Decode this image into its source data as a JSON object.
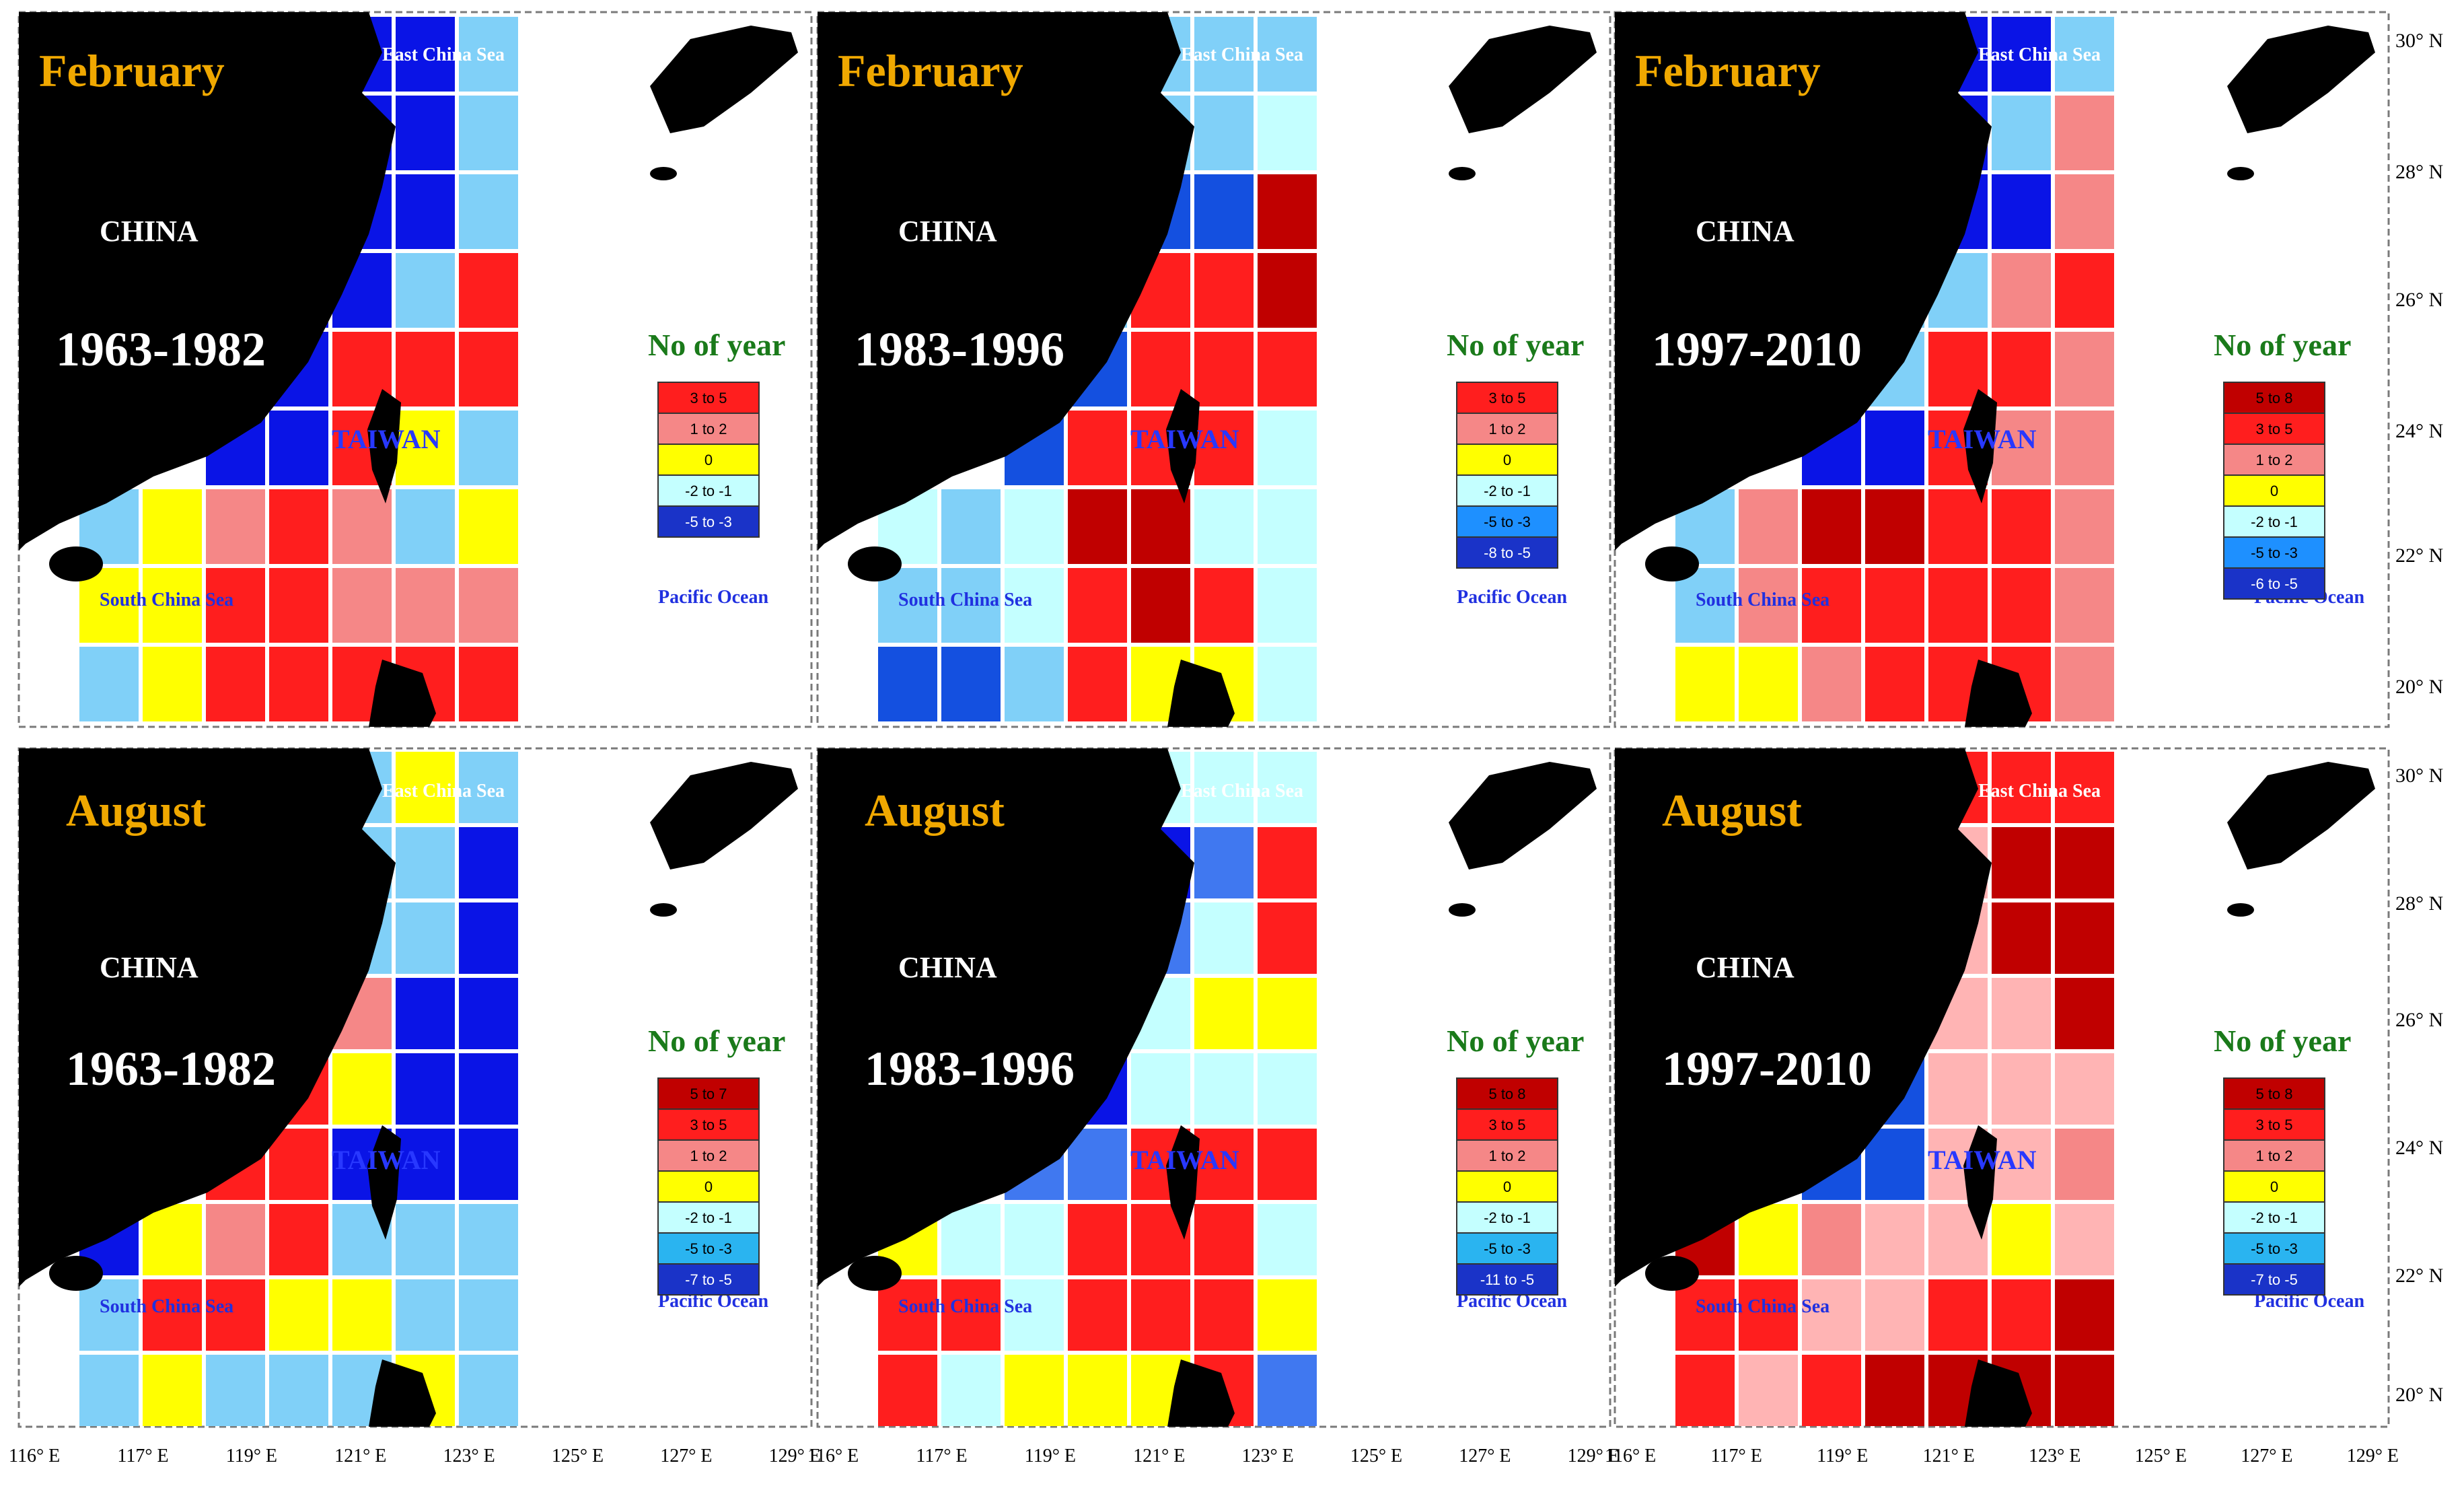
{
  "panels": [
    {
      "id": "feb-1963-1982",
      "month": "February",
      "period": "1963-1982",
      "country_label": "CHINA",
      "island_label": "TAIWAN",
      "seas": {
        "ecs": "East China Sea",
        "scs": "South China Sea",
        "po": "Pacific Ocean"
      },
      "legend_title": "No of year",
      "legend": [
        {
          "label": "3 to 5",
          "color": "#ff1e1e"
        },
        {
          "label": "1 to 2",
          "color": "#f58787"
        },
        {
          "label": "0",
          "color": "#ffff00"
        },
        {
          "label": "-2 to -1",
          "color": "#c4ffff"
        },
        {
          "label": "-5 to -3",
          "color": "#1a33c8"
        }
      ],
      "grid": [
        [
          "B1",
          "B1",
          "B1",
          "B1",
          "L"
        ],
        [
          "B1",
          "B1",
          "B1",
          "B1",
          "L"
        ],
        [
          "B1",
          "B1",
          "B1",
          "B1",
          "L"
        ],
        [
          "B1",
          "B1",
          "B1",
          "L",
          "R1"
        ],
        [
          "R1",
          "B1",
          "R1",
          "R1",
          "R1"
        ],
        [
          "B1",
          "B1",
          "R1",
          "Y",
          "L"
        ],
        [
          "L",
          "Y",
          "P",
          "R1",
          "P",
          "L",
          "Y"
        ],
        [
          "Y",
          "Y",
          "R1",
          "R1",
          "P",
          "P",
          "P"
        ],
        [
          "L",
          "Y",
          "R1",
          "R1",
          "R1",
          "R1",
          "R1"
        ]
      ]
    },
    {
      "id": "feb-1983-1996",
      "month": "February",
      "period": "1983-1996",
      "country_label": "CHINA",
      "island_label": "TAIWAN",
      "seas": {
        "ecs": "East China Sea",
        "scs": "South China Sea",
        "po": "Pacific Ocean"
      },
      "legend_title": "No of year",
      "legend": [
        {
          "label": "3 to 5",
          "color": "#ff1e1e"
        },
        {
          "label": "1 to 2",
          "color": "#f58787"
        },
        {
          "label": "0",
          "color": "#ffff00"
        },
        {
          "label": "-2 to -1",
          "color": "#c4ffff"
        },
        {
          "label": "-5 to -3",
          "color": "#1e90ff"
        },
        {
          "label": "-8 to -5",
          "color": "#1a33c8"
        }
      ],
      "grid": [
        [
          "L",
          "L",
          "L",
          "L",
          "L"
        ],
        [
          "L",
          "B2",
          "L",
          "L",
          "C"
        ],
        [
          "B2",
          "B2",
          "B2",
          "B2",
          "D"
        ],
        [
          "B2",
          "L",
          "R1",
          "R1",
          "D"
        ],
        [
          "B2",
          "B2",
          "R1",
          "R1",
          "R1"
        ],
        [
          "B2",
          "R1",
          "R1",
          "R1",
          "C"
        ],
        [
          "C",
          "L",
          "C",
          "D",
          "D",
          "C",
          "C"
        ],
        [
          "L",
          "L",
          "C",
          "R1",
          "D",
          "R1",
          "C"
        ],
        [
          "B2",
          "B2",
          "L",
          "R1",
          "Y",
          "Y",
          "C"
        ]
      ]
    },
    {
      "id": "feb-1997-2010",
      "month": "February",
      "period": "1997-2010",
      "country_label": "CHINA",
      "island_label": "TAIWAN",
      "seas": {
        "ecs": "East China Sea",
        "scs": "South China Sea",
        "po": "Pacific Ocean"
      },
      "legend_title": "No of year",
      "legend": [
        {
          "label": "5 to 8",
          "color": "#c00000"
        },
        {
          "label": "3 to 5",
          "color": "#ff1e1e"
        },
        {
          "label": "1 to 2",
          "color": "#f58787"
        },
        {
          "label": "0",
          "color": "#ffff00"
        },
        {
          "label": "-2 to -1",
          "color": "#c4ffff"
        },
        {
          "label": "-5 to -3",
          "color": "#1e90ff"
        },
        {
          "label": "-6 to -5",
          "color": "#1a33c8"
        }
      ],
      "grid": [
        [
          "B1",
          "B1",
          "B1",
          "B1",
          "L"
        ],
        [
          "B1",
          "B1",
          "B1",
          "L",
          "P"
        ],
        [
          "B1",
          "B1",
          "B1",
          "B1",
          "P"
        ],
        [
          "L",
          "L",
          "L",
          "P",
          "R1"
        ],
        [
          "B1",
          "L",
          "R1",
          "R1",
          "P"
        ],
        [
          "B1",
          "B1",
          "R1",
          "P",
          "P"
        ],
        [
          "L",
          "P",
          "D",
          "D",
          "R1",
          "R1",
          "P"
        ],
        [
          "L",
          "P",
          "R1",
          "R1",
          "R1",
          "R1",
          "P"
        ],
        [
          "Y",
          "Y",
          "P",
          "R1",
          "R1",
          "R1",
          "P"
        ]
      ]
    },
    {
      "id": "aug-1963-1982",
      "month": "August",
      "period": "1963-1982",
      "country_label": "CHINA",
      "island_label": "TAIWAN",
      "seas": {
        "ecs": "East China Sea",
        "scs": "South China Sea",
        "po": "Pacific Ocean"
      },
      "legend_title": "No of year",
      "legend": [
        {
          "label": "5 to 7",
          "color": "#c00000"
        },
        {
          "label": "3 to 5",
          "color": "#ff1e1e"
        },
        {
          "label": "1 to 2",
          "color": "#f58787"
        },
        {
          "label": "0",
          "color": "#ffff00"
        },
        {
          "label": "-2 to -1",
          "color": "#c4ffff"
        },
        {
          "label": "-5 to -3",
          "color": "#2ab4f0"
        },
        {
          "label": "-7 to -5",
          "color": "#1a33c8"
        }
      ],
      "grid": [
        [
          "B1",
          "B1",
          "L",
          "Y",
          "L"
        ],
        [
          "L",
          "L",
          "L",
          "L",
          "B1"
        ],
        [
          "Y",
          "Y",
          "L",
          "L",
          "B1"
        ],
        [
          "R1",
          "R1",
          "P",
          "B1",
          "B1"
        ],
        [
          "R1",
          "R1",
          "Y",
          "B1",
          "B1"
        ],
        [
          "R1",
          "R1",
          "B1",
          "B1",
          "B1"
        ],
        [
          "B1",
          "Y",
          "P",
          "R1",
          "L",
          "L",
          "L"
        ],
        [
          "L",
          "R1",
          "R1",
          "Y",
          "Y",
          "L",
          "L"
        ],
        [
          "L",
          "Y",
          "L",
          "L",
          "L",
          "Y",
          "L"
        ]
      ]
    },
    {
      "id": "aug-1983-1996",
      "month": "August",
      "period": "1983-1996",
      "country_label": "CHINA",
      "island_label": "TAIWAN",
      "seas": {
        "ecs": "East China Sea",
        "scs": "South China Sea",
        "po": "Pacific Ocean"
      },
      "legend_title": "No of year",
      "legend": [
        {
          "label": "5 to 8",
          "color": "#c00000"
        },
        {
          "label": "3 to 5",
          "color": "#ff1e1e"
        },
        {
          "label": "1 to 2",
          "color": "#f58787"
        },
        {
          "label": "0",
          "color": "#ffff00"
        },
        {
          "label": "-2 to -1",
          "color": "#c4ffff"
        },
        {
          "label": "-5 to -3",
          "color": "#2ab4f0"
        },
        {
          "label": "-11 to -5",
          "color": "#1a33c8"
        }
      ],
      "grid": [
        [
          "R1",
          "L",
          "C",
          "C",
          "C"
        ],
        [
          "B1",
          "B1",
          "B1",
          "B3",
          "R1"
        ],
        [
          "B1",
          "B1",
          "B3",
          "C",
          "R1"
        ],
        [
          "B1",
          "B1",
          "C",
          "Y",
          "Y"
        ],
        [
          "B1",
          "B1",
          "C",
          "C",
          "C"
        ],
        [
          "B3",
          "B3",
          "R1",
          "R1",
          "R1"
        ],
        [
          "Y",
          "C",
          "C",
          "R1",
          "R1",
          "R1",
          "C"
        ],
        [
          "R1",
          "R1",
          "C",
          "R1",
          "R1",
          "R1",
          "Y"
        ],
        [
          "R1",
          "C",
          "Y",
          "Y",
          "Y",
          "R1",
          "B3"
        ]
      ]
    },
    {
      "id": "aug-1997-2010",
      "month": "August",
      "period": "1997-2010",
      "country_label": "CHINA",
      "island_label": "TAIWAN",
      "seas": {
        "ecs": "East China Sea",
        "scs": "South China Sea",
        "po": "Pacific Ocean"
      },
      "legend_title": "No of year",
      "legend": [
        {
          "label": "5 to 8",
          "color": "#c00000"
        },
        {
          "label": "3 to 5",
          "color": "#ff1e1e"
        },
        {
          "label": "1 to 2",
          "color": "#f58787"
        },
        {
          "label": "0",
          "color": "#ffff00"
        },
        {
          "label": "-2 to -1",
          "color": "#c4ffff"
        },
        {
          "label": "-5 to -3",
          "color": "#2ab4f0"
        },
        {
          "label": "-7 to -5",
          "color": "#1a33c8"
        }
      ],
      "grid": [
        [
          "R1",
          "R1",
          "R1",
          "R1",
          "R1"
        ],
        [
          "D",
          "D",
          "S",
          "D",
          "D"
        ],
        [
          "R1",
          "D",
          "S",
          "D",
          "D"
        ],
        [
          "B2",
          "B2",
          "S",
          "S",
          "D"
        ],
        [
          "B2",
          "B2",
          "S",
          "S",
          "S"
        ],
        [
          "B2",
          "B2",
          "S",
          "S",
          "P"
        ],
        [
          "D",
          "Y",
          "P",
          "S",
          "S",
          "Y",
          "S"
        ],
        [
          "R1",
          "R1",
          "S",
          "S",
          "R1",
          "R1",
          "D"
        ],
        [
          "R1",
          "S",
          "R1",
          "D",
          "D",
          "D",
          "D"
        ]
      ]
    }
  ],
  "lat_labels": [
    "30° N",
    "28° N",
    "26° N",
    "24° N",
    "22° N",
    "20° N"
  ],
  "lon_labels": [
    "116° E",
    "117° E",
    "119° E",
    "121° E",
    "123° E",
    "125° E",
    "127° E",
    "129° E"
  ],
  "cell_colors": {
    "D": "#c00000",
    "R1": "#ff1e1e",
    "P": "#f58787",
    "S": "#ffb4b4",
    "Y": "#ffff00",
    "C": "#c4ffff",
    "L": "#80d0f8",
    "B1": "#0a14e6",
    "B2": "#1450e0",
    "B3": "#4078f0"
  }
}
